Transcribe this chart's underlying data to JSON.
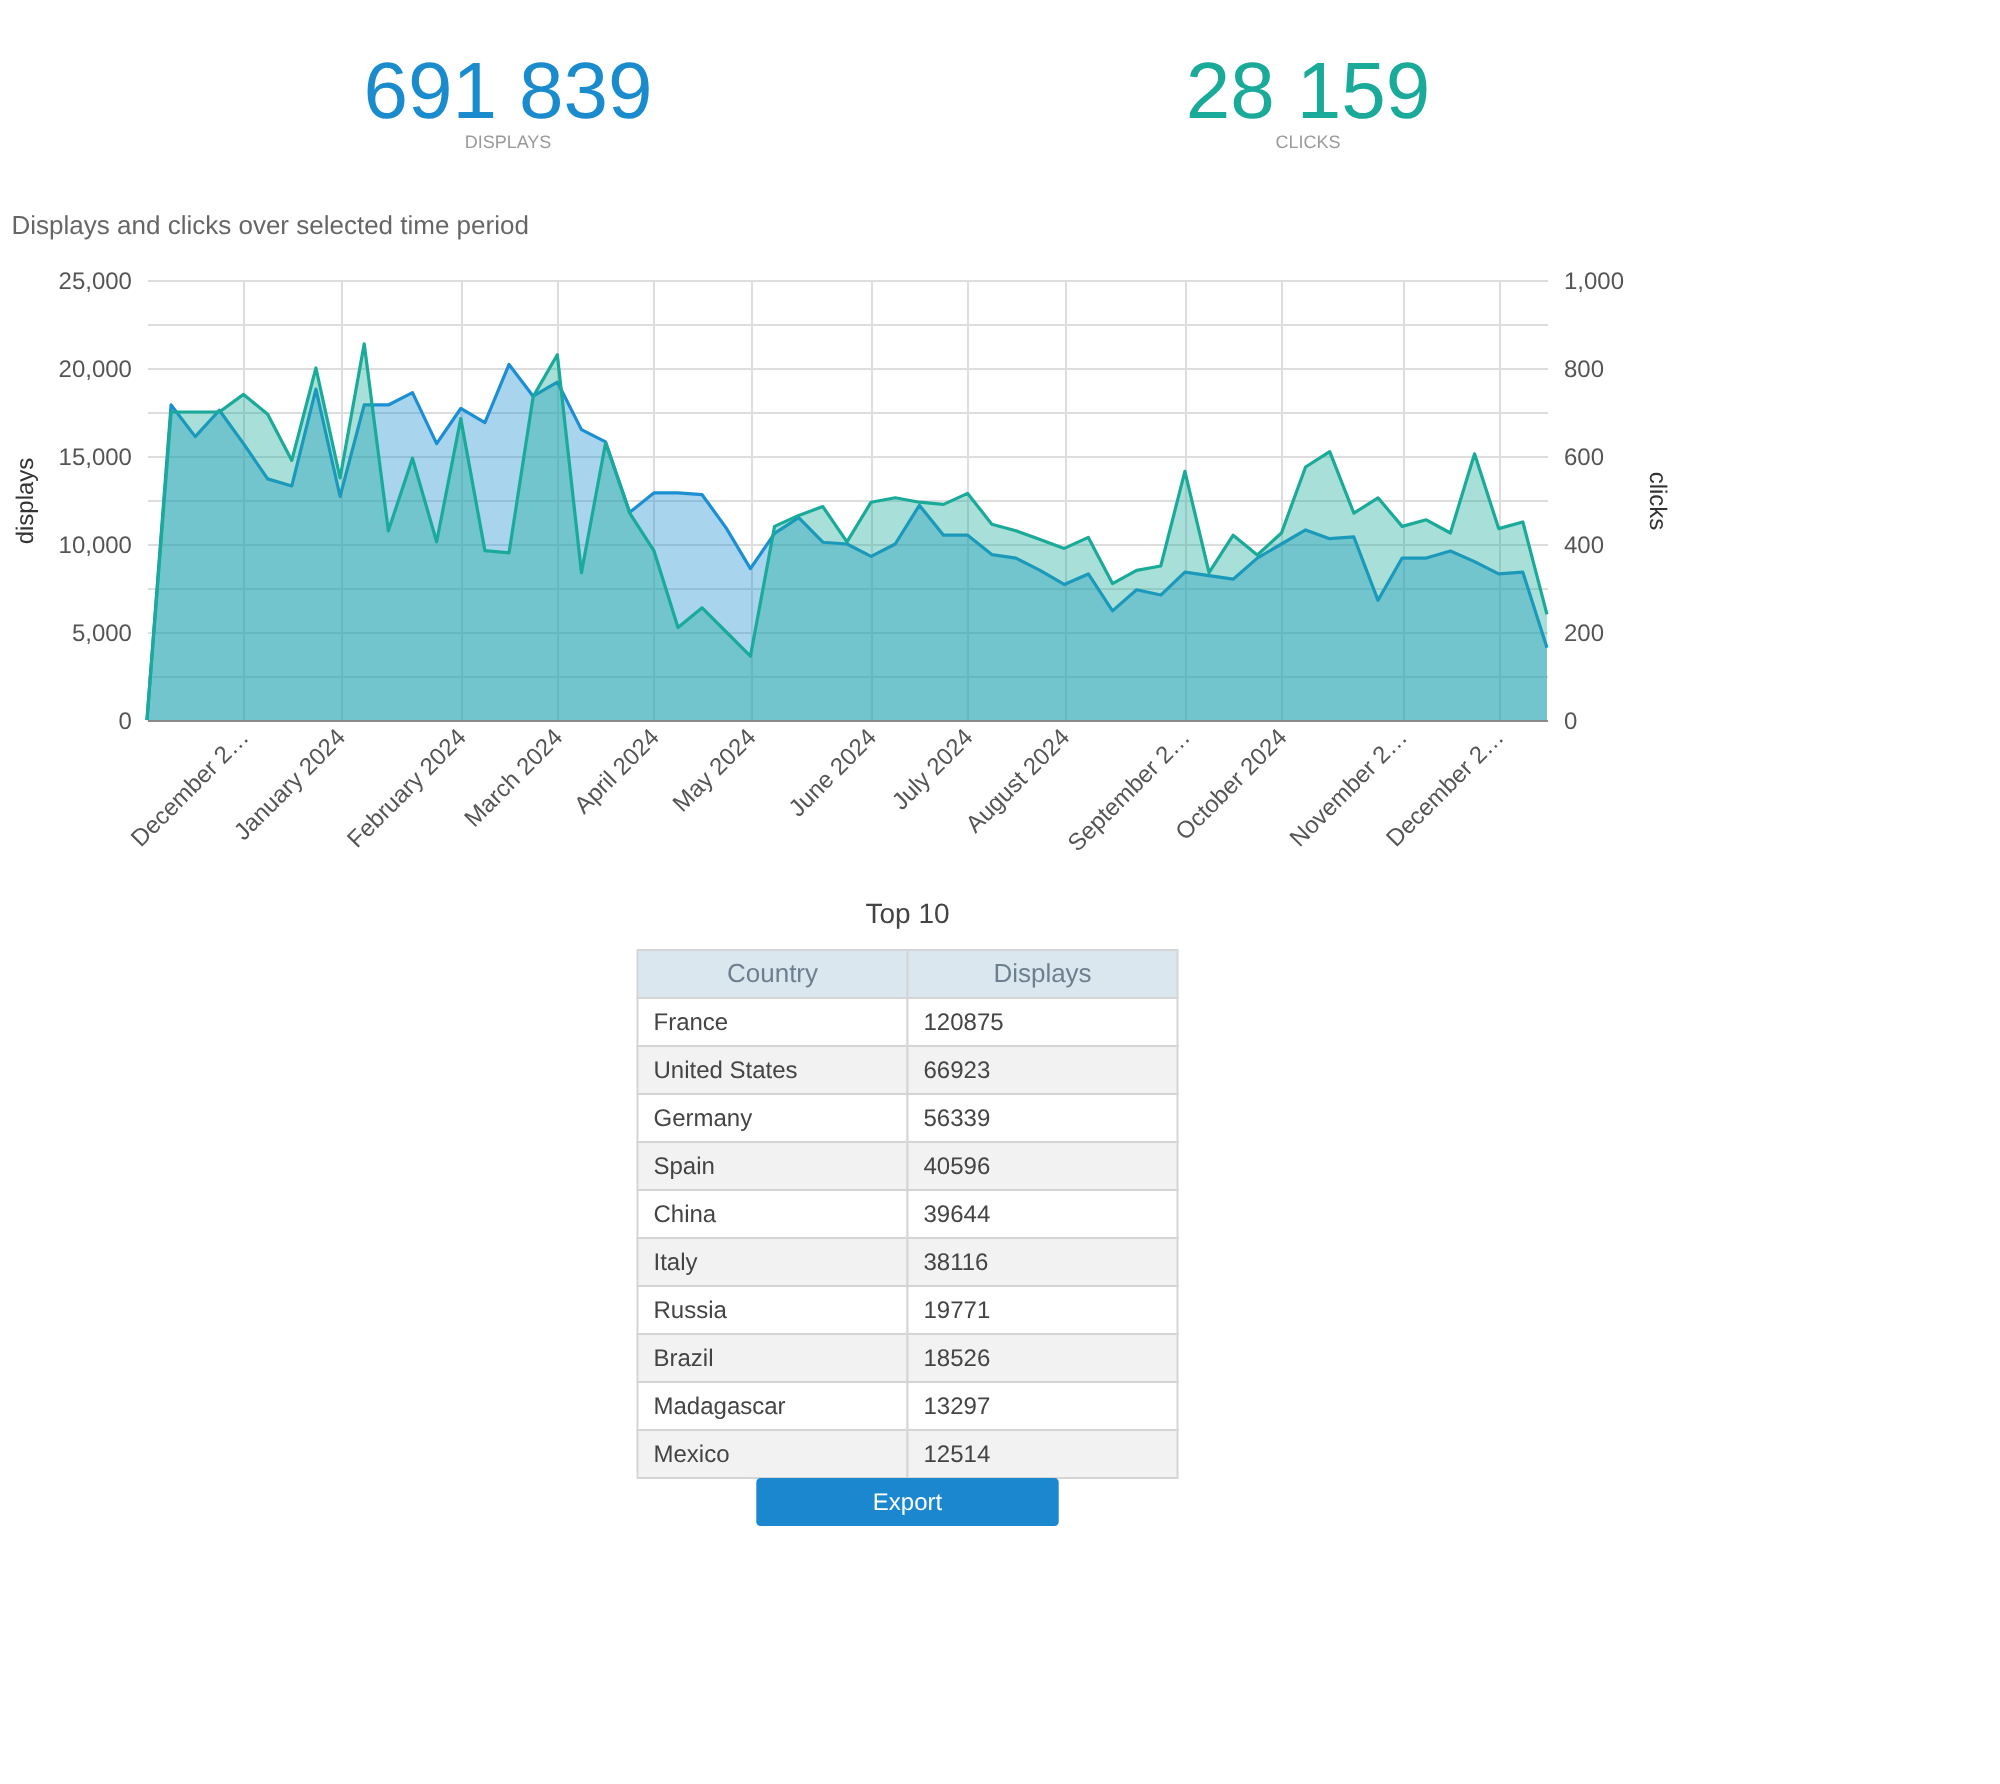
{
  "chart_data": [
    {
      "type": "other",
      "categories": [
        "DISPLAYS",
        "CLICKS"
      ],
      "values": [
        691839,
        28159
      ],
      "colors": [
        "#1a8ccd",
        "#19aa99"
      ],
      "data_labels": true
    },
    {
      "type": "area",
      "title": "Displays and clicks over selected time period",
      "ylabel": "displays",
      "y2label": "clicks",
      "categories": [
        null,
        null,
        null,
        null,
        "December 2…",
        null,
        null,
        null,
        "January 2024",
        null,
        null,
        null,
        null,
        "February 2024",
        null,
        null,
        null,
        "March 2024",
        null,
        null,
        null,
        "April 2024",
        null,
        null,
        null,
        "May 2024",
        null,
        null,
        null,
        null,
        "June 2024",
        null,
        null,
        null,
        "July 2024",
        null,
        null,
        null,
        "August 2024",
        null,
        null,
        null,
        null,
        "September 2…",
        null,
        null,
        null,
        "October 2024",
        null,
        null,
        null,
        null,
        "November 2…",
        null,
        null,
        null,
        "December 2…",
        null,
        null
      ],
      "ylim": [
        0,
        25000
      ],
      "yticks": [
        0,
        {
          "value": 2500,
          "label": null
        },
        {
          "value": 5000,
          "label": "5,000"
        },
        {
          "value": 7500,
          "label": null
        },
        {
          "value": 10000,
          "label": "10,000"
        },
        {
          "value": 12500,
          "label": null
        },
        {
          "value": 15000,
          "label": "15,000"
        },
        {
          "value": 17500,
          "label": null
        },
        {
          "value": 20000,
          "label": "20,000"
        },
        {
          "value": 22500,
          "label": null
        },
        {
          "value": 25000,
          "label": "25,000"
        }
      ],
      "y2lim": [
        0,
        1000
      ],
      "y2ticks": [
        0,
        200,
        400,
        600,
        800,
        {
          "value": 1000,
          "label": "1,000"
        }
      ],
      "grid": true,
      "line_style": "solid",
      "series": [
        {
          "color": "#1b8fd1",
          "values": [
            0,
            17900,
            16100,
            17600,
            15700,
            13700,
            13300,
            18800,
            12700,
            17900,
            17900,
            18600,
            15700,
            17700,
            16900,
            20200,
            18400,
            19200,
            16500,
            15800,
            11800,
            12900,
            12900,
            12800,
            10900,
            8600,
            10600,
            11500,
            10100,
            10000,
            9300,
            10000,
            12200,
            10500,
            10500,
            9400,
            9200,
            8500,
            7700,
            8300,
            6200,
            7400,
            7100,
            8400,
            8200,
            8000,
            9200,
            10000,
            10800,
            10300,
            10400,
            6800,
            9200,
            9200,
            9600,
            9000,
            8300,
            8400,
            4100
          ]
        },
        {
          "color": "#19aa99",
          "axis": "y2",
          "values": [
            0,
            700,
            700,
            700,
            740,
            695,
            590,
            800,
            550,
            855,
            430,
            595,
            405,
            685,
            385,
            380,
            735,
            830,
            335,
            630,
            470,
            385,
            210,
            255,
            200,
            145,
            440,
            465,
            485,
            405,
            495,
            505,
            495,
            490,
            515,
            445,
            430,
            410,
            390,
            415,
            310,
            340,
            350,
            565,
            335,
            420,
            375,
            425,
            575,
            610,
            470,
            505,
            440,
            455,
            425,
            605,
            435,
            450,
            240
          ]
        }
      ]
    },
    {
      "type": "other",
      "title": "Top 10",
      "xlabel": "Country",
      "ylabel": "Displays",
      "categories": [
        "France",
        "United States",
        "Germany",
        "Spain",
        "China",
        "Italy",
        "Russia",
        "Brazil",
        "Madagascar",
        "Mexico"
      ],
      "values": [
        120875,
        66923,
        56339,
        40596,
        39644,
        38116,
        19771,
        18526,
        13297,
        12514
      ],
      "data_labels": true,
      "annotations": [
        "Export"
      ]
    }
  ]
}
